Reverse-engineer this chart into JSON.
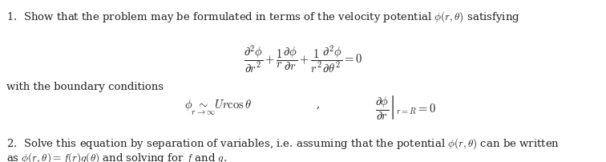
{
  "background_color": "#ffffff",
  "text_color": "#222222",
  "figsize": [
    7.56,
    2.02
  ],
  "dpi": 100,
  "line1": "1.  Show that the problem may be formulated in terms of the velocity potential $\\phi(r, \\theta)$ satisfying",
  "equation1": "$\\dfrac{\\partial^2\\phi}{\\partial r^2} + \\dfrac{1}{r}\\dfrac{\\partial\\phi}{\\partial r} + \\dfrac{1}{r^2}\\dfrac{\\partial^2\\phi}{\\partial\\theta^2} = 0$",
  "line2": "with the boundary conditions",
  "bc_left": "$\\phi \\underset{r\\to\\infty}{\\sim} Ur\\cos\\theta$",
  "bc_comma": ",",
  "bc_right": "$\\left.\\dfrac{\\partial\\phi}{\\partial r}\\right|_{r=R} = 0$",
  "line3": "2.  Solve this equation by separation of variables, i.e. assuming that the potential $\\phi(r, \\theta)$ can be written",
  "line4": "as $\\phi(r, \\theta) = f(r)g(\\theta)$ and solving for $f$ and $g$.",
  "fs_main": 9.5,
  "fs_eq": 10.5
}
